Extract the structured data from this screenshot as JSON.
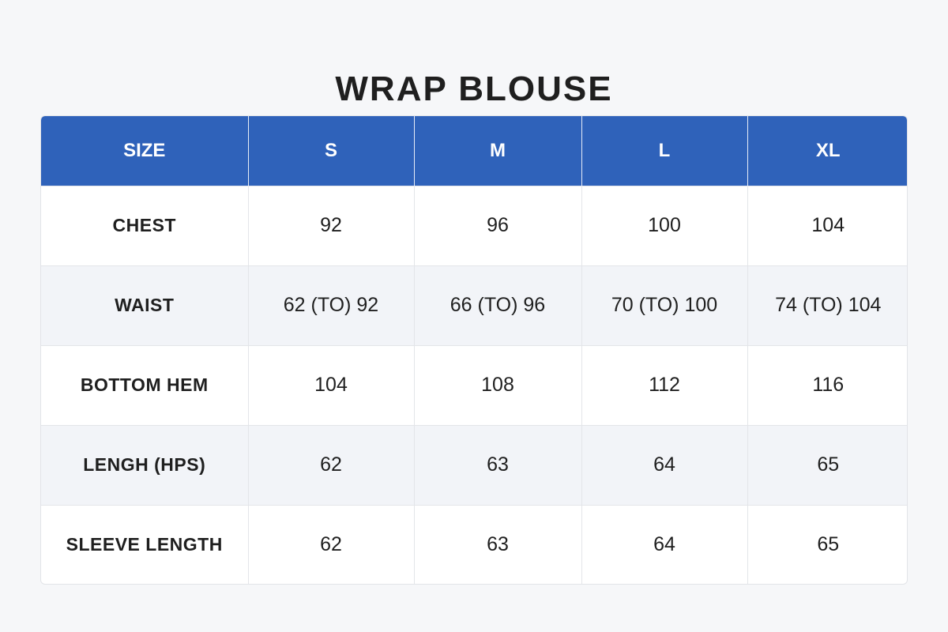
{
  "title": "WRAP BLOUSE",
  "table": {
    "headers": [
      "SIZE",
      "S",
      "M",
      "L",
      "XL"
    ],
    "rows": [
      {
        "label": "CHEST",
        "values": [
          "92",
          "96",
          "100",
          "104"
        ]
      },
      {
        "label": "WAIST",
        "values": [
          "62 (TO) 92",
          "66 (TO) 96",
          "70 (TO) 100",
          "74 (TO) 104"
        ]
      },
      {
        "label": "BOTTOM HEM",
        "values": [
          "104",
          "108",
          "112",
          "116"
        ]
      },
      {
        "label": "LENGH (HPS)",
        "values": [
          "62",
          "63",
          "64",
          "65"
        ]
      },
      {
        "label": "SLEEVE LENGTH",
        "values": [
          "62",
          "63",
          "64",
          "65"
        ]
      }
    ]
  },
  "colors": {
    "header_background": "#2f62ba",
    "header_text": "#ffffff",
    "alt_row_background": "#f2f4f8",
    "page_background": "#f6f7f9"
  }
}
